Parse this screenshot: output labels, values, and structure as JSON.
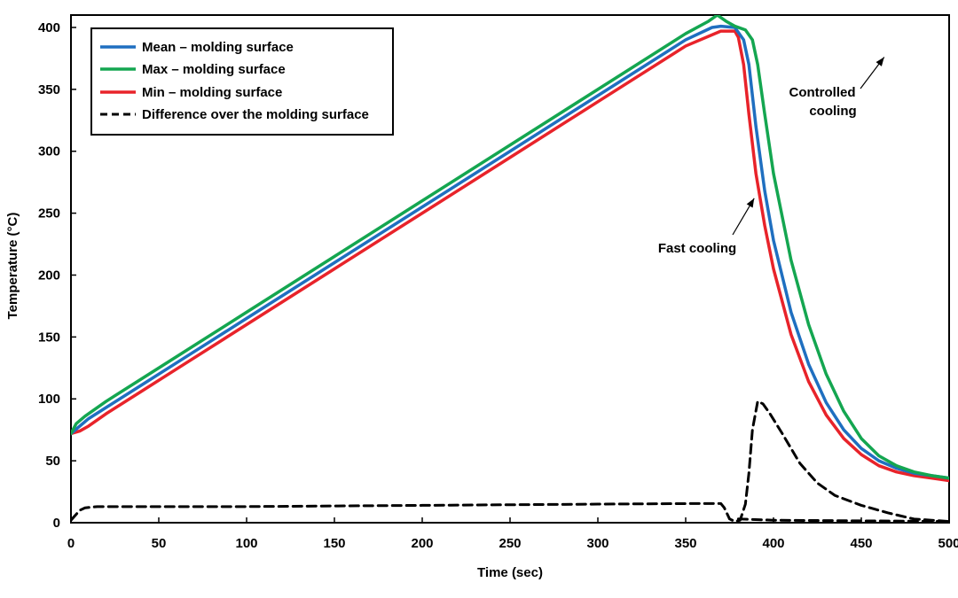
{
  "chart_data": {
    "type": "line",
    "title": "",
    "xlabel": "Time (sec)",
    "ylabel": "Temperature (°C)",
    "xlim": [
      0,
      500
    ],
    "ylim": [
      0,
      410
    ],
    "xticks": [
      0,
      50,
      100,
      150,
      200,
      250,
      300,
      350,
      400,
      450,
      500
    ],
    "yticks": [
      0,
      50,
      100,
      150,
      200,
      250,
      300,
      350,
      400
    ],
    "grid": false,
    "legend_position": "top-left",
    "series": [
      {
        "name": "Mean – molding surface",
        "color": "#1f6fc0",
        "dash": "solid",
        "points": [
          [
            0,
            72
          ],
          [
            5,
            78
          ],
          [
            10,
            84
          ],
          [
            20,
            93
          ],
          [
            40,
            111
          ],
          [
            60,
            129
          ],
          [
            100,
            165
          ],
          [
            150,
            210
          ],
          [
            200,
            255
          ],
          [
            250,
            300
          ],
          [
            300,
            345
          ],
          [
            350,
            390
          ],
          [
            365,
            400
          ],
          [
            370,
            401
          ],
          [
            378,
            400
          ],
          [
            383,
            390
          ],
          [
            386,
            370
          ],
          [
            390,
            320
          ],
          [
            395,
            268
          ],
          [
            400,
            228
          ],
          [
            410,
            170
          ],
          [
            420,
            128
          ],
          [
            430,
            97
          ],
          [
            440,
            75
          ],
          [
            450,
            60
          ],
          [
            460,
            50
          ],
          [
            470,
            44
          ],
          [
            480,
            40
          ],
          [
            490,
            38
          ],
          [
            500,
            36
          ]
        ]
      },
      {
        "name": "Max – molding surface",
        "color": "#14a650",
        "dash": "solid",
        "points": [
          [
            0,
            72
          ],
          [
            3,
            80
          ],
          [
            8,
            86
          ],
          [
            20,
            98
          ],
          [
            40,
            116
          ],
          [
            60,
            134
          ],
          [
            100,
            170
          ],
          [
            150,
            215
          ],
          [
            200,
            260
          ],
          [
            250,
            305
          ],
          [
            300,
            350
          ],
          [
            350,
            395
          ],
          [
            363,
            405
          ],
          [
            368,
            410
          ],
          [
            373,
            405
          ],
          [
            378,
            401
          ],
          [
            384,
            398
          ],
          [
            388,
            390
          ],
          [
            391,
            370
          ],
          [
            395,
            330
          ],
          [
            400,
            282
          ],
          [
            410,
            212
          ],
          [
            420,
            160
          ],
          [
            430,
            120
          ],
          [
            440,
            90
          ],
          [
            450,
            68
          ],
          [
            460,
            54
          ],
          [
            470,
            46
          ],
          [
            480,
            41
          ],
          [
            490,
            38
          ],
          [
            500,
            36
          ]
        ]
      },
      {
        "name": "Min – molding surface",
        "color": "#e8232a",
        "dash": "solid",
        "points": [
          [
            0,
            72
          ],
          [
            5,
            74
          ],
          [
            10,
            78
          ],
          [
            20,
            88
          ],
          [
            40,
            106
          ],
          [
            60,
            124
          ],
          [
            100,
            160
          ],
          [
            150,
            205
          ],
          [
            200,
            250
          ],
          [
            250,
            295
          ],
          [
            300,
            340
          ],
          [
            350,
            385
          ],
          [
            370,
            397
          ],
          [
            378,
            397
          ],
          [
            380,
            392
          ],
          [
            383,
            370
          ],
          [
            386,
            330
          ],
          [
            390,
            282
          ],
          [
            395,
            240
          ],
          [
            400,
            205
          ],
          [
            410,
            152
          ],
          [
            420,
            114
          ],
          [
            430,
            87
          ],
          [
            440,
            68
          ],
          [
            450,
            55
          ],
          [
            460,
            46
          ],
          [
            470,
            41
          ],
          [
            480,
            38
          ],
          [
            490,
            36
          ],
          [
            500,
            34
          ]
        ]
      },
      {
        "name": "Difference over the molding surface",
        "color": "#000000",
        "dash": "dashed",
        "points": [
          [
            0,
            2
          ],
          [
            5,
            10
          ],
          [
            8,
            12
          ],
          [
            15,
            13
          ],
          [
            100,
            13
          ],
          [
            200,
            14
          ],
          [
            300,
            15
          ],
          [
            360,
            15.5
          ],
          [
            370,
            15.5
          ],
          [
            372,
            12
          ],
          [
            375,
            3
          ],
          [
            378,
            1
          ],
          [
            381,
            2
          ],
          [
            384,
            15
          ],
          [
            386,
            40
          ],
          [
            388,
            75
          ],
          [
            391,
            98
          ],
          [
            394,
            96
          ],
          [
            398,
            88
          ],
          [
            405,
            72
          ],
          [
            415,
            48
          ],
          [
            425,
            32
          ],
          [
            435,
            22
          ],
          [
            450,
            14
          ],
          [
            465,
            8
          ],
          [
            480,
            3
          ],
          [
            490,
            2
          ],
          [
            500,
            1
          ]
        ]
      },
      {
        "name": "",
        "color": "#000000",
        "dash": "dashed",
        "points": [
          [
            380,
            3
          ],
          [
            400,
            2
          ],
          [
            450,
            1.5
          ],
          [
            500,
            1
          ]
        ]
      }
    ],
    "annotations": [
      {
        "text_lines": [
          "Controlled",
          "cooling"
        ],
        "arrow_to": [
          463,
          376
        ]
      },
      {
        "text_lines": [
          "Fast cooling"
        ],
        "arrow_to": [
          389,
          262
        ]
      }
    ]
  }
}
